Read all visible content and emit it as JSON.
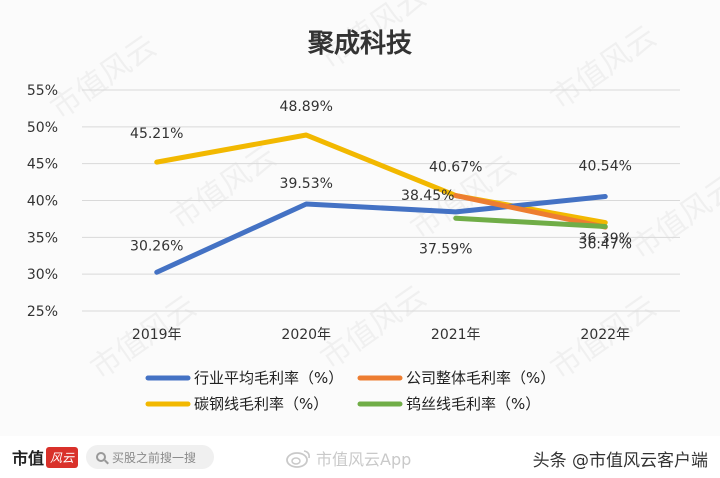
{
  "chart_data": {
    "type": "line",
    "title": "聚成科技",
    "categories": [
      "2019年",
      "2020年",
      "2021年",
      "2022年"
    ],
    "y_ticks": [
      "55%",
      "50%",
      "45%",
      "40%",
      "35%",
      "30%",
      "25%"
    ],
    "ylim": [
      25,
      55
    ],
    "grid": true,
    "legend_position": "bottom",
    "series": [
      {
        "name": "行业平均毛利率（%）",
        "color": "#4472c4",
        "values": [
          30.26,
          39.53,
          38.45,
          40.54
        ],
        "labels": [
          "30.26%",
          "39.53%",
          "38.45%",
          "40.54%"
        ]
      },
      {
        "name": "公司整体毛利率（%）",
        "color": "#ed7d31",
        "values": [
          null,
          null,
          40.67,
          36.39
        ],
        "labels": [
          "",
          "",
          "40.67%",
          "36.39%"
        ]
      },
      {
        "name": "碳钢线毛利率（%）",
        "color": "#f2b800",
        "values": [
          45.21,
          48.89,
          40.67,
          37.0
        ],
        "labels": [
          "45.21%",
          "48.89%",
          "",
          ""
        ]
      },
      {
        "name": "钨丝线毛利率（%）",
        "color": "#70ad47",
        "values": [
          null,
          null,
          37.59,
          36.47
        ],
        "labels": [
          "",
          "",
          "37.59%",
          "36.47%"
        ]
      }
    ]
  },
  "watermark": {
    "text": "市值风云"
  },
  "footer": {
    "brand_text": "市值",
    "brand_mark": "风云",
    "search_placeholder": "买股之前搜一搜",
    "weibo_text": "市值风云App",
    "toutiao_text": "头条 @市值风云客户端"
  }
}
